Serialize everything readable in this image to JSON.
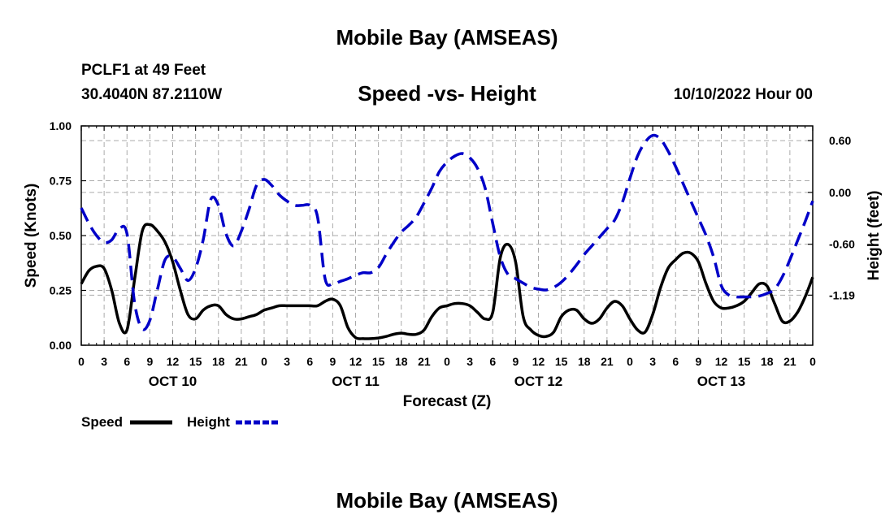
{
  "header": {
    "title": "Mobile Bay (AMSEAS)",
    "station": "PCLF1 at 49 Feet",
    "coordinates": "30.4040N  87.2110W",
    "chart_title": "Speed -vs- Height",
    "run_time": "10/10/2022 Hour 00"
  },
  "footer": {
    "title": "Mobile Bay (AMSEAS)"
  },
  "colors": {
    "speed": "#000000",
    "height": "#0000c8",
    "grid": "#aaaaaa"
  },
  "chart_data": {
    "type": "line",
    "title": "Speed -vs- Height",
    "xlabel": "Forecast (Z)",
    "ylabel": "Speed (Knots)",
    "ylabel_right": "Height (feet)",
    "x_unit": "forecast hour",
    "xlim": [
      0,
      96
    ],
    "ylim": [
      0,
      1.0
    ],
    "ylim_right": [
      -1.77,
      0.77
    ],
    "x_ticks": [
      0,
      3,
      6,
      9,
      12,
      15,
      18,
      21,
      24,
      27,
      30,
      33,
      36,
      39,
      42,
      45,
      48,
      51,
      54,
      57,
      60,
      63,
      66,
      69,
      72,
      75,
      78,
      81,
      84,
      87,
      90,
      93,
      96
    ],
    "x_tick_labels": [
      "0",
      "3",
      "6",
      "9",
      "12",
      "15",
      "18",
      "21",
      "0",
      "3",
      "6",
      "9",
      "12",
      "15",
      "18",
      "21",
      "0",
      "3",
      "6",
      "9",
      "12",
      "15",
      "18",
      "21",
      "0",
      "3",
      "6",
      "9",
      "12",
      "15",
      "18",
      "21",
      "0"
    ],
    "y_ticks": [
      0,
      0.25,
      0.5,
      0.75,
      1.0
    ],
    "y_tick_labels": [
      "0.00",
      "0.25",
      "0.50",
      "0.75",
      "1.00"
    ],
    "y_right_ticks": [
      0.6,
      0.0,
      -0.6,
      -1.19
    ],
    "y_right_tick_labels": [
      "0.60",
      "0.00",
      "-0.60",
      "-1.19"
    ],
    "day_labels": [
      {
        "hour": 12,
        "label": "OCT 10"
      },
      {
        "hour": 36,
        "label": "OCT 11"
      },
      {
        "hour": 60,
        "label": "OCT 12"
      },
      {
        "hour": 84,
        "label": "OCT 13"
      }
    ],
    "grid": true,
    "legend": [
      {
        "name": "Speed",
        "style": "solid"
      },
      {
        "name": "Height",
        "style": "dashed"
      }
    ],
    "series": [
      {
        "name": "Speed",
        "axis": "left",
        "x": [
          0,
          1,
          2,
          3,
          4,
          5,
          6,
          7,
          8,
          9,
          10,
          11,
          12,
          13,
          14,
          15,
          16,
          17,
          18,
          19,
          20,
          21,
          22,
          23,
          24,
          25,
          26,
          27,
          28,
          29,
          30,
          31,
          32,
          33,
          34,
          35,
          36,
          37,
          38,
          39,
          40,
          41,
          42,
          43,
          44,
          45,
          46,
          47,
          48,
          49,
          50,
          51,
          52,
          53,
          54,
          55,
          56,
          57,
          58,
          59,
          60,
          61,
          62,
          63,
          64,
          65,
          66,
          67,
          68,
          69,
          70,
          71,
          72,
          73,
          74,
          75,
          76,
          77,
          78,
          79,
          80,
          81,
          82,
          83,
          84,
          85,
          86,
          87,
          88,
          89,
          90,
          91,
          92,
          93,
          94,
          95,
          96
        ],
        "values": [
          0.28,
          0.34,
          0.36,
          0.35,
          0.25,
          0.1,
          0.07,
          0.3,
          0.52,
          0.55,
          0.52,
          0.47,
          0.38,
          0.25,
          0.14,
          0.12,
          0.16,
          0.18,
          0.18,
          0.14,
          0.12,
          0.12,
          0.13,
          0.14,
          0.16,
          0.17,
          0.18,
          0.18,
          0.18,
          0.18,
          0.18,
          0.18,
          0.2,
          0.21,
          0.18,
          0.08,
          0.035,
          0.03,
          0.03,
          0.033,
          0.04,
          0.05,
          0.055,
          0.05,
          0.05,
          0.07,
          0.13,
          0.17,
          0.18,
          0.19,
          0.19,
          0.18,
          0.15,
          0.12,
          0.15,
          0.4,
          0.46,
          0.38,
          0.13,
          0.07,
          0.045,
          0.04,
          0.06,
          0.13,
          0.16,
          0.16,
          0.12,
          0.1,
          0.12,
          0.17,
          0.2,
          0.18,
          0.12,
          0.07,
          0.06,
          0.14,
          0.26,
          0.35,
          0.39,
          0.42,
          0.42,
          0.38,
          0.28,
          0.2,
          0.17,
          0.17,
          0.18,
          0.2,
          0.24,
          0.28,
          0.27,
          0.19,
          0.11,
          0.11,
          0.15,
          0.22,
          0.31
        ]
      },
      {
        "name": "Height",
        "axis": "right",
        "x": [
          0,
          1,
          2,
          3,
          4,
          5,
          6,
          7,
          8,
          9,
          10,
          11,
          12,
          13,
          14,
          15,
          16,
          17,
          18,
          19,
          20,
          21,
          22,
          23,
          24,
          25,
          26,
          27,
          28,
          29,
          30,
          31,
          32,
          33,
          34,
          35,
          36,
          37,
          38,
          39,
          40,
          41,
          42,
          43,
          44,
          45,
          46,
          47,
          48,
          49,
          50,
          51,
          52,
          53,
          54,
          55,
          56,
          57,
          58,
          59,
          60,
          61,
          62,
          63,
          64,
          65,
          66,
          67,
          68,
          69,
          70,
          71,
          72,
          73,
          74,
          75,
          76,
          77,
          78,
          79,
          80,
          81,
          82,
          83,
          84,
          85,
          86,
          87,
          88,
          89,
          90,
          91,
          92,
          93,
          94,
          95,
          96
        ],
        "values": [
          -0.18,
          -0.36,
          -0.5,
          -0.58,
          -0.55,
          -0.42,
          -0.48,
          -1.28,
          -1.58,
          -1.48,
          -1.12,
          -0.78,
          -0.75,
          -0.88,
          -1.02,
          -0.88,
          -0.55,
          -0.08,
          -0.15,
          -0.48,
          -0.62,
          -0.45,
          -0.2,
          0.08,
          0.15,
          0.08,
          -0.03,
          -0.1,
          -0.15,
          -0.15,
          -0.15,
          -0.28,
          -1.0,
          -1.06,
          -1.03,
          -1.0,
          -0.96,
          -0.93,
          -0.93,
          -0.87,
          -0.72,
          -0.58,
          -0.46,
          -0.38,
          -0.28,
          -0.12,
          0.05,
          0.24,
          0.35,
          0.42,
          0.45,
          0.4,
          0.28,
          0.05,
          -0.36,
          -0.75,
          -0.95,
          -1.0,
          -1.05,
          -1.1,
          -1.12,
          -1.13,
          -1.1,
          -1.04,
          -0.95,
          -0.84,
          -0.72,
          -0.62,
          -0.52,
          -0.42,
          -0.32,
          -0.12,
          0.16,
          0.42,
          0.58,
          0.66,
          0.62,
          0.48,
          0.3,
          0.1,
          -0.1,
          -0.3,
          -0.5,
          -0.75,
          -1.08,
          -1.19,
          -1.21,
          -1.21,
          -1.21,
          -1.2,
          -1.17,
          -1.12,
          -0.98,
          -0.78,
          -0.56,
          -0.34,
          -0.1
        ]
      }
    ]
  }
}
